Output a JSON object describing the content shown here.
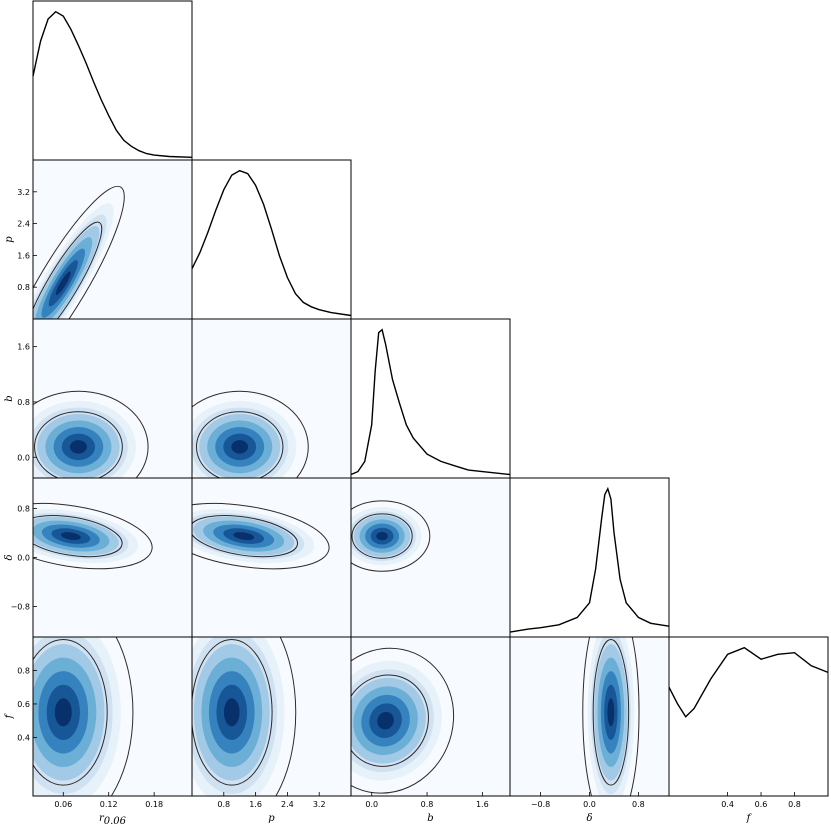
{
  "chart_data": {
    "type": "corner",
    "parameters": [
      {
        "name": "r_0.06",
        "label": "r",
        "label_subscript": "0.06",
        "range": [
          0.02,
          0.23
        ],
        "ticks": [
          0.06,
          0.12,
          0.18
        ],
        "tick_labels": [
          "0.06",
          "0.12",
          "0.18"
        ]
      },
      {
        "name": "p",
        "label": "p",
        "label_subscript": "",
        "range": [
          0.0,
          4.0
        ],
        "ticks": [
          0.8,
          1.6,
          2.4,
          3.2
        ],
        "tick_labels": [
          "0.8",
          "1.6",
          "2.4",
          "3.2"
        ]
      },
      {
        "name": "b",
        "label": "b",
        "label_subscript": "",
        "range": [
          -0.3,
          2.0
        ],
        "ticks": [
          0.0,
          0.8,
          1.6
        ],
        "tick_labels": [
          "0.0",
          "0.8",
          "1.6"
        ]
      },
      {
        "name": "δ",
        "label": "δ",
        "label_subscript": "",
        "range": [
          -1.3,
          1.3
        ],
        "ticks": [
          -0.8,
          0.0,
          0.8
        ],
        "tick_labels": [
          "−0.8",
          "0.0",
          "0.8"
        ]
      },
      {
        "name": "f",
        "label": "f",
        "label_subscript": "",
        "range": [
          0.05,
          1.0
        ],
        "ticks": [
          0.4,
          0.6,
          0.8
        ],
        "tick_labels": [
          "0.4",
          "0.6",
          "0.8"
        ]
      }
    ],
    "marginals": [
      {
        "param": "r_0.06",
        "x": [
          0.02,
          0.03,
          0.04,
          0.05,
          0.06,
          0.07,
          0.08,
          0.09,
          0.1,
          0.11,
          0.12,
          0.13,
          0.14,
          0.15,
          0.16,
          0.17,
          0.18,
          0.2,
          0.23
        ],
        "density": [
          0.56,
          0.8,
          0.95,
          1.0,
          0.97,
          0.88,
          0.77,
          0.65,
          0.52,
          0.4,
          0.29,
          0.19,
          0.12,
          0.08,
          0.05,
          0.03,
          0.02,
          0.01,
          0.005
        ]
      },
      {
        "param": "p",
        "x": [
          0.0,
          0.2,
          0.4,
          0.6,
          0.8,
          1.0,
          1.2,
          1.4,
          1.6,
          1.8,
          2.0,
          2.2,
          2.4,
          2.6,
          2.8,
          3.0,
          3.2,
          3.5,
          4.0
        ],
        "density": [
          0.33,
          0.44,
          0.58,
          0.73,
          0.87,
          0.97,
          1.0,
          0.98,
          0.9,
          0.77,
          0.6,
          0.42,
          0.27,
          0.16,
          0.1,
          0.07,
          0.05,
          0.03,
          0.01
        ]
      },
      {
        "param": "b",
        "x": [
          -0.3,
          -0.2,
          -0.1,
          0.0,
          0.05,
          0.1,
          0.15,
          0.2,
          0.3,
          0.4,
          0.5,
          0.6,
          0.8,
          1.0,
          1.2,
          1.4,
          1.6,
          2.0
        ],
        "density": [
          0.01,
          0.03,
          0.1,
          0.35,
          0.72,
          0.98,
          1.0,
          0.9,
          0.66,
          0.5,
          0.35,
          0.26,
          0.15,
          0.1,
          0.07,
          0.04,
          0.03,
          0.01
        ]
      },
      {
        "param": "δ",
        "x": [
          -1.3,
          -1.0,
          -0.8,
          -0.5,
          -0.2,
          0.0,
          0.1,
          0.2,
          0.25,
          0.3,
          0.35,
          0.4,
          0.5,
          0.6,
          0.8,
          1.0,
          1.3
        ],
        "density": [
          0.02,
          0.04,
          0.05,
          0.07,
          0.12,
          0.22,
          0.45,
          0.8,
          0.96,
          1.0,
          0.93,
          0.7,
          0.38,
          0.22,
          0.12,
          0.08,
          0.06
        ]
      },
      {
        "param": "f",
        "x": [
          0.05,
          0.1,
          0.15,
          0.2,
          0.3,
          0.4,
          0.5,
          0.6,
          0.7,
          0.8,
          0.9,
          1.0
        ],
        "density": [
          0.65,
          0.55,
          0.47,
          0.52,
          0.7,
          0.85,
          0.89,
          0.82,
          0.85,
          0.86,
          0.78,
          0.74
        ]
      }
    ],
    "joint_peaks": [
      {
        "x": "r_0.06",
        "y": "p",
        "peak": [
          0.06,
          0.9
        ],
        "correlation": 0.93,
        "spread": [
          0.035,
          0.75
        ]
      },
      {
        "x": "r_0.06",
        "y": "b",
        "peak": [
          0.08,
          0.15
        ],
        "correlation": 0.0,
        "spread": [
          0.04,
          0.35
        ]
      },
      {
        "x": "p",
        "y": "b",
        "peak": [
          1.2,
          0.15
        ],
        "correlation": 0.0,
        "spread": [
          0.75,
          0.35
        ]
      },
      {
        "x": "r_0.06",
        "y": "δ",
        "peak": [
          0.07,
          0.35
        ],
        "correlation": -0.2,
        "spread": [
          0.04,
          0.25
        ]
      },
      {
        "x": "p",
        "y": "δ",
        "peak": [
          1.3,
          0.35
        ],
        "correlation": -0.2,
        "spread": [
          0.8,
          0.25
        ]
      },
      {
        "x": "b",
        "y": "δ",
        "peak": [
          0.15,
          0.35
        ],
        "correlation": 0.0,
        "spread": [
          0.3,
          0.25
        ]
      },
      {
        "x": "r_0.06",
        "y": "f",
        "peak": [
          0.06,
          0.55
        ],
        "correlation": 0.0,
        "spread": [
          0.04,
          0.3
        ]
      },
      {
        "x": "p",
        "y": "f",
        "peak": [
          1.0,
          0.55
        ],
        "correlation": 0.0,
        "spread": [
          0.7,
          0.3
        ]
      },
      {
        "x": "b",
        "y": "f",
        "peak": [
          0.2,
          0.5
        ],
        "correlation": 0.6,
        "spread": [
          0.3,
          0.3
        ]
      },
      {
        "x": "δ",
        "y": "f",
        "peak": [
          0.35,
          0.55
        ],
        "correlation": 0.0,
        "spread": [
          0.2,
          0.3
        ]
      }
    ],
    "colors": {
      "density_high": "#08306b",
      "density_mid": "#2171b5",
      "density_low": "#f7fbff",
      "line": "#000000"
    }
  }
}
